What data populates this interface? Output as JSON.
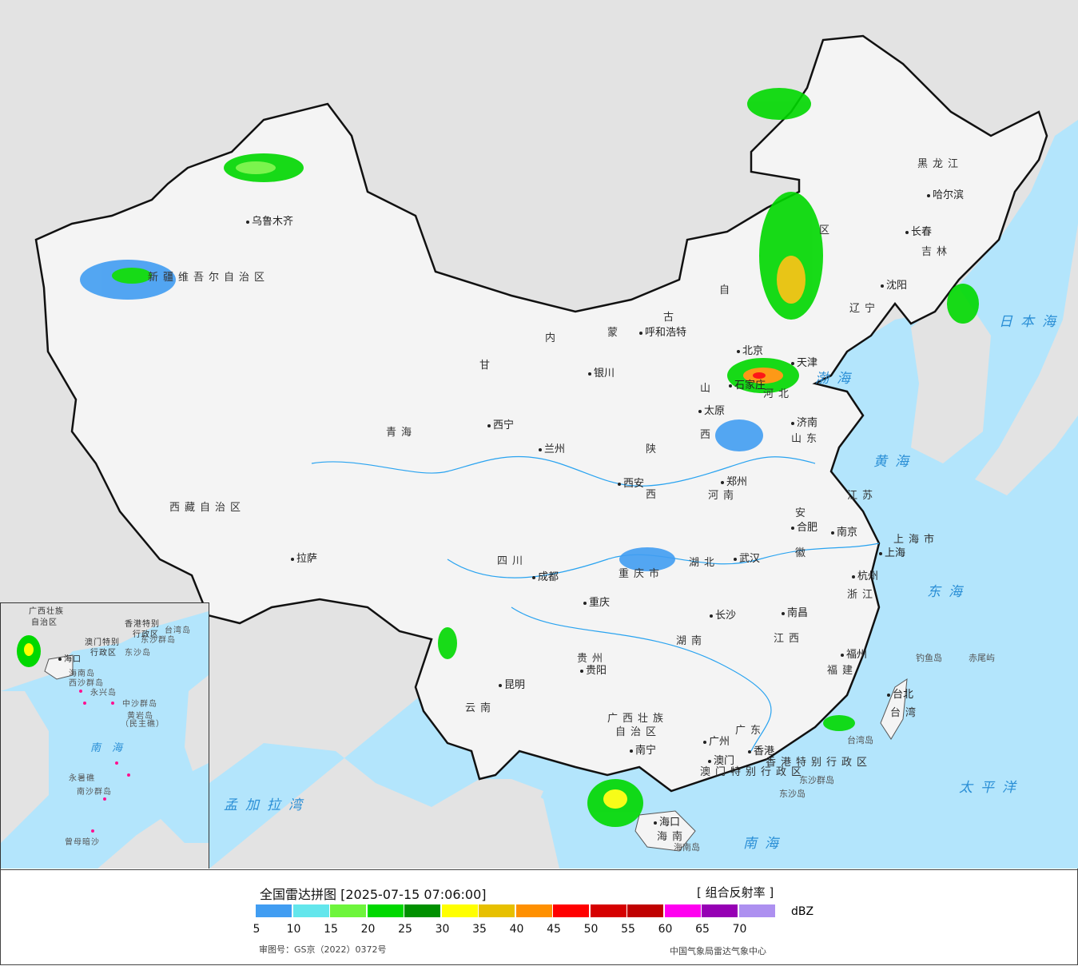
{
  "map": {
    "colors": {
      "sea": "#b3e5fc",
      "land_other": "#e3e3e3",
      "china": "#f4f4f4",
      "border": "#111111",
      "river": "#29a3f0"
    },
    "labels": [
      {
        "text": "乌鲁木齐",
        "kind": "city"
      },
      {
        "text": "新疆维吾尔自治区",
        "kind": "prov"
      },
      {
        "text": "西藏自治区",
        "kind": "prov"
      },
      {
        "text": "拉萨",
        "kind": "city"
      },
      {
        "text": "青海",
        "kind": "prov"
      },
      {
        "text": "西宁",
        "kind": "city"
      },
      {
        "text": "甘",
        "kind": "prov"
      },
      {
        "text": "内",
        "kind": "prov"
      },
      {
        "text": "蒙",
        "kind": "prov"
      },
      {
        "text": "呼和浩特",
        "kind": "city"
      },
      {
        "text": "古",
        "kind": "prov"
      },
      {
        "text": "自",
        "kind": "prov"
      },
      {
        "text": "区",
        "kind": "prov"
      },
      {
        "text": "黑龙江",
        "kind": "prov"
      },
      {
        "text": "哈尔滨",
        "kind": "city"
      },
      {
        "text": "长春",
        "kind": "city"
      },
      {
        "text": "吉林",
        "kind": "prov"
      },
      {
        "text": "沈阳",
        "kind": "city"
      },
      {
        "text": "辽宁",
        "kind": "prov"
      },
      {
        "text": "日本海",
        "kind": "sea"
      },
      {
        "text": "北京",
        "kind": "city"
      },
      {
        "text": "天津",
        "kind": "city"
      },
      {
        "text": "渤海",
        "kind": "sea"
      },
      {
        "text": "石家庄",
        "kind": "city"
      },
      {
        "text": "河北",
        "kind": "prov"
      },
      {
        "text": "山",
        "kind": "prov"
      },
      {
        "text": "太原",
        "kind": "city"
      },
      {
        "text": "西",
        "kind": "prov"
      },
      {
        "text": "济南",
        "kind": "city"
      },
      {
        "text": "山东",
        "kind": "prov"
      },
      {
        "text": "黄海",
        "kind": "sea"
      },
      {
        "text": "银川",
        "kind": "city"
      },
      {
        "text": "兰州",
        "kind": "city"
      },
      {
        "text": "陕",
        "kind": "prov"
      },
      {
        "text": "西安",
        "kind": "city"
      },
      {
        "text": "西",
        "kind": "prov"
      },
      {
        "text": "郑州",
        "kind": "city"
      },
      {
        "text": "河南",
        "kind": "prov"
      },
      {
        "text": "江苏",
        "kind": "prov"
      },
      {
        "text": "安",
        "kind": "prov"
      },
      {
        "text": "合肥",
        "kind": "city"
      },
      {
        "text": "徽",
        "kind": "prov"
      },
      {
        "text": "南京",
        "kind": "city"
      },
      {
        "text": "上海市",
        "kind": "prov"
      },
      {
        "text": "上海",
        "kind": "city"
      },
      {
        "text": "杭州",
        "kind": "city"
      },
      {
        "text": "浙江",
        "kind": "prov"
      },
      {
        "text": "东海",
        "kind": "sea"
      },
      {
        "text": "四川",
        "kind": "prov"
      },
      {
        "text": "成都",
        "kind": "city"
      },
      {
        "text": "重庆市",
        "kind": "prov"
      },
      {
        "text": "重庆",
        "kind": "city"
      },
      {
        "text": "湖北",
        "kind": "prov"
      },
      {
        "text": "武汉",
        "kind": "city"
      },
      {
        "text": "长沙",
        "kind": "city"
      },
      {
        "text": "湖南",
        "kind": "prov"
      },
      {
        "text": "南昌",
        "kind": "city"
      },
      {
        "text": "江西",
        "kind": "prov"
      },
      {
        "text": "福州",
        "kind": "city"
      },
      {
        "text": "福建",
        "kind": "prov"
      },
      {
        "text": "钓鱼岛",
        "kind": "small"
      },
      {
        "text": "赤尾屿",
        "kind": "small"
      },
      {
        "text": "台北",
        "kind": "city"
      },
      {
        "text": "台湾",
        "kind": "prov"
      },
      {
        "text": "台湾岛",
        "kind": "small"
      },
      {
        "text": "贵州",
        "kind": "prov"
      },
      {
        "text": "贵阳",
        "kind": "city"
      },
      {
        "text": "昆明",
        "kind": "city"
      },
      {
        "text": "云南",
        "kind": "prov"
      },
      {
        "text": "广西壮族",
        "kind": "prov"
      },
      {
        "text": "自治区",
        "kind": "prov"
      },
      {
        "text": "南宁",
        "kind": "city"
      },
      {
        "text": "广东",
        "kind": "prov"
      },
      {
        "text": "广州",
        "kind": "city"
      },
      {
        "text": "香港",
        "kind": "city"
      },
      {
        "text": "澳门",
        "kind": "city"
      },
      {
        "text": "香港特别行政区",
        "kind": "prov"
      },
      {
        "text": "澳门特别行政区",
        "kind": "prov"
      },
      {
        "text": "东沙群岛",
        "kind": "small"
      },
      {
        "text": "东沙岛",
        "kind": "small"
      },
      {
        "text": "太平洋",
        "kind": "sea"
      },
      {
        "text": "孟加拉湾",
        "kind": "sea"
      },
      {
        "text": "海口",
        "kind": "city"
      },
      {
        "text": "海南",
        "kind": "prov"
      },
      {
        "text": "海南岛",
        "kind": "small"
      },
      {
        "text": "南海",
        "kind": "sea"
      }
    ],
    "inset_labels": [
      {
        "text": "广西壮族",
        "kind": "prov"
      },
      {
        "text": "自治区",
        "kind": "prov"
      },
      {
        "text": "香港特别",
        "kind": "prov"
      },
      {
        "text": "行政区",
        "kind": "prov"
      },
      {
        "text": "澳门特别",
        "kind": "prov"
      },
      {
        "text": "行政区",
        "kind": "prov"
      },
      {
        "text": "台湾岛",
        "kind": "small"
      },
      {
        "text": "东沙群岛",
        "kind": "small"
      },
      {
        "text": "东沙岛",
        "kind": "small"
      },
      {
        "text": "海口",
        "kind": "city"
      },
      {
        "text": "海南岛",
        "kind": "small"
      },
      {
        "text": "西沙群岛",
        "kind": "small"
      },
      {
        "text": "永兴岛",
        "kind": "small"
      },
      {
        "text": "中沙群岛",
        "kind": "small"
      },
      {
        "text": "黄岩岛",
        "kind": "small"
      },
      {
        "text": "（民主礁）",
        "kind": "small"
      },
      {
        "text": "南海",
        "kind": "sea"
      },
      {
        "text": "永暑礁",
        "kind": "small"
      },
      {
        "text": "南沙群岛",
        "kind": "small"
      },
      {
        "text": "曾母暗沙",
        "kind": "small"
      }
    ]
  },
  "legend": {
    "title": "全国雷达拼图 [2025-07-15 07:06:00]",
    "product": "[ 组合反射率 ]",
    "unit": "dBZ",
    "colors": [
      "#419df2",
      "#63e6ec",
      "#6ef53c",
      "#00d800",
      "#009000",
      "#ffff00",
      "#e7c000",
      "#ff9000",
      "#ff0000",
      "#d60000",
      "#c00000",
      "#ff00f0",
      "#9600b4",
      "#ad90f0"
    ],
    "ticks": [
      "5",
      "10",
      "15",
      "20",
      "25",
      "30",
      "35",
      "40",
      "45",
      "50",
      "55",
      "60",
      "65",
      "70"
    ],
    "approval": "审图号：GS京（2022）0372号",
    "agency": "中国气象局雷达气象中心"
  }
}
